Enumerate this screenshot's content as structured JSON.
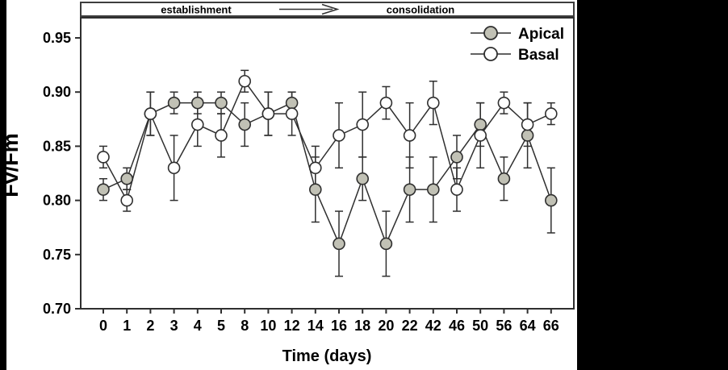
{
  "panel": {
    "left_black_bar": "#000000",
    "right_black_panel": "#000000",
    "background": "#ffffff"
  },
  "phase_banner": {
    "phase1_label": "establishment",
    "phase2_label": "consolidation",
    "arrow": "right-arrow"
  },
  "chart_data": {
    "type": "line",
    "title": "",
    "xlabel": "Time (days)",
    "ylabel": "Fv/Fm",
    "categories": [
      "0",
      "1",
      "2",
      "3",
      "4",
      "5",
      "8",
      "10",
      "12",
      "14",
      "16",
      "18",
      "20",
      "22",
      "42",
      "46",
      "50",
      "56",
      "64",
      "66"
    ],
    "yticks": [
      "0.95",
      "0.90",
      "0.85",
      "0.80",
      "0.75",
      "0.70"
    ],
    "ylim": [
      0.7,
      0.97
    ],
    "grid": false,
    "legend_position": "top-right-inside",
    "colors": {
      "apical_marker_fill": "#c1c1b5",
      "basal_marker_fill": "#ffffff",
      "line_stroke": "#2f2f2f",
      "text": "#000000"
    },
    "series": [
      {
        "name": "Apical",
        "marker": "filled-circle",
        "values": [
          0.81,
          0.82,
          0.88,
          0.89,
          0.89,
          0.89,
          0.87,
          0.88,
          0.89,
          0.81,
          0.76,
          0.82,
          0.76,
          0.81,
          0.81,
          0.84,
          0.87,
          0.82,
          0.86,
          0.8
        ],
        "errors": [
          0.01,
          0.01,
          0.02,
          0.01,
          0.01,
          0.01,
          0.02,
          0.02,
          0.01,
          0.03,
          0.03,
          0.02,
          0.03,
          0.03,
          0.03,
          0.02,
          0.02,
          0.02,
          0.03,
          0.03
        ]
      },
      {
        "name": "Basal",
        "marker": "open-circle",
        "values": [
          0.84,
          0.8,
          0.88,
          0.83,
          0.87,
          0.86,
          0.91,
          0.88,
          0.88,
          0.83,
          0.86,
          0.87,
          0.89,
          0.86,
          0.89,
          0.81,
          0.86,
          0.89,
          0.87,
          0.88
        ],
        "errors": [
          0.01,
          0.01,
          0.02,
          0.03,
          0.02,
          0.02,
          0.01,
          0.02,
          0.02,
          0.02,
          0.03,
          0.03,
          0.015,
          0.03,
          0.02,
          0.02,
          0.03,
          0.01,
          0.02,
          0.01
        ]
      }
    ]
  }
}
